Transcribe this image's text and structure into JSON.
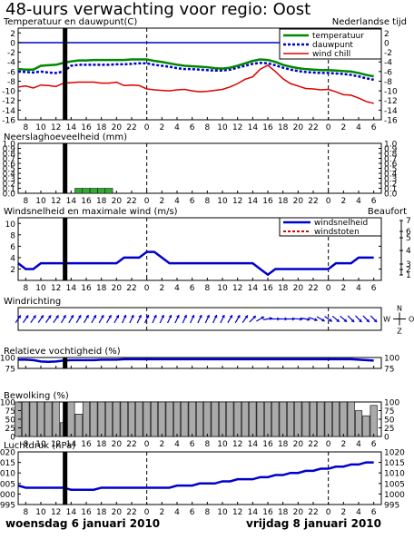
{
  "title": "48-uurs verwachting voor regio: Oost",
  "time_zone": "Nederlandse tijd",
  "date_left": "woensdag 6 januari 2010",
  "date_right": "vrijdag 8 januari 2010",
  "x_tick_labels": [
    "8",
    "10",
    "12",
    "14",
    "16",
    "18",
    "20",
    "22",
    "0",
    "2",
    "4",
    "6",
    "8",
    "10",
    "12",
    "14",
    "16",
    "18",
    "20",
    "22",
    "0",
    "2",
    "4",
    "6"
  ],
  "colors": {
    "temperature": "#008800",
    "dewpoint": "#0000cc",
    "windchill": "#dd0000",
    "precip": "#33aa33",
    "wind": "#0000cc",
    "gust": "#dd0000",
    "direction": "#0000cc",
    "humidity": "#0000cc",
    "cloud": "#aaaaaa",
    "pressure": "#0000cc",
    "now_line": "#000000"
  },
  "chart_data": [
    {
      "type": "line",
      "title": "Temperatuur en dauwpunt(C)",
      "ylim": [
        -16,
        3
      ],
      "y_ticks": [
        2,
        0,
        -2,
        -4,
        -6,
        -8,
        -10,
        -12,
        -14,
        -16
      ],
      "series": [
        {
          "name": "temperatuur",
          "x": [
            7,
            8,
            9,
            10,
            11,
            12,
            13,
            14,
            15,
            16,
            17,
            18,
            19,
            20,
            21,
            22,
            23,
            24,
            25,
            26,
            27,
            28,
            29,
            30,
            31,
            32,
            33,
            34,
            35,
            36,
            37,
            38,
            39,
            40,
            41,
            42,
            43,
            44,
            45,
            46,
            47,
            48,
            49,
            50,
            51,
            52,
            53,
            54
          ],
          "values": [
            -5.5,
            -5.6,
            -5.6,
            -4.8,
            -4.7,
            -4.6,
            -4.2,
            -3.9,
            -3.7,
            -3.7,
            -3.6,
            -3.6,
            -3.6,
            -3.6,
            -3.6,
            -3.5,
            -3.5,
            -3.5,
            -3.8,
            -4.0,
            -4.3,
            -4.6,
            -4.8,
            -4.9,
            -5.0,
            -5.1,
            -5.3,
            -5.4,
            -5.2,
            -4.8,
            -4.3,
            -3.8,
            -3.5,
            -3.6,
            -4.0,
            -4.6,
            -5.0,
            -5.3,
            -5.5,
            -5.6,
            -5.7,
            -5.7,
            -5.8,
            -5.9,
            -6.0,
            -6.3,
            -6.7,
            -7.0
          ]
        },
        {
          "name": "dauwpunt",
          "x": [
            7,
            8,
            9,
            10,
            11,
            12,
            13,
            14,
            15,
            16,
            17,
            18,
            19,
            20,
            21,
            22,
            23,
            24,
            25,
            26,
            27,
            28,
            29,
            30,
            31,
            32,
            33,
            34,
            35,
            36,
            37,
            38,
            39,
            40,
            41,
            42,
            43,
            44,
            45,
            46,
            47,
            48,
            49,
            50,
            51,
            52,
            53,
            54
          ],
          "values": [
            -6.0,
            -6.1,
            -6.2,
            -6.0,
            -6.2,
            -6.3,
            -6.0,
            -4.8,
            -4.6,
            -4.6,
            -4.6,
            -4.6,
            -4.6,
            -4.5,
            -4.5,
            -4.4,
            -4.3,
            -4.3,
            -4.6,
            -4.8,
            -5.0,
            -5.3,
            -5.5,
            -5.5,
            -5.6,
            -5.7,
            -5.8,
            -5.8,
            -5.6,
            -5.2,
            -4.8,
            -4.4,
            -4.2,
            -4.3,
            -4.7,
            -5.2,
            -5.6,
            -5.9,
            -6.1,
            -6.2,
            -6.3,
            -6.3,
            -6.4,
            -6.5,
            -6.7,
            -7.0,
            -7.4,
            -7.7
          ]
        },
        {
          "name": "wind chill",
          "x": [
            7,
            8,
            9,
            10,
            11,
            12,
            13,
            14,
            15,
            16,
            17,
            18,
            19,
            20,
            21,
            22,
            23,
            24,
            25,
            26,
            27,
            28,
            29,
            30,
            31,
            32,
            33,
            34,
            35,
            36,
            37,
            38,
            39,
            40,
            41,
            42,
            43,
            44,
            45,
            46,
            47,
            48,
            49,
            50,
            51,
            52,
            53,
            54
          ],
          "values": [
            -9.2,
            -9.0,
            -9.4,
            -8.8,
            -8.9,
            -9.1,
            -8.4,
            -8.3,
            -8.2,
            -8.2,
            -8.2,
            -8.4,
            -8.4,
            -8.2,
            -8.9,
            -8.8,
            -8.9,
            -9.6,
            -9.8,
            -9.9,
            -10.0,
            -9.8,
            -9.7,
            -10.0,
            -10.2,
            -10.1,
            -9.9,
            -9.7,
            -9.2,
            -8.5,
            -7.6,
            -7.1,
            -5.5,
            -4.7,
            -6.0,
            -7.5,
            -8.5,
            -9.0,
            -9.5,
            -9.6,
            -9.8,
            -9.7,
            -10.2,
            -10.8,
            -10.9,
            -11.5,
            -12.2,
            -12.6
          ]
        }
      ]
    },
    {
      "type": "bar",
      "title": "Neerslaghoeveelheid (mm)",
      "ylim": [
        0,
        1
      ],
      "y_ticks": [
        1.0,
        0.9,
        0.8,
        0.7,
        0.6,
        0.5,
        0.4,
        0.3,
        0.2,
        0.1,
        0.0
      ],
      "x": [
        15,
        16,
        17,
        18,
        19
      ],
      "values": [
        0.1,
        0.1,
        0.1,
        0.1,
        0.1
      ]
    },
    {
      "type": "line",
      "title": "Windsnelheid en maximale wind (m/s)",
      "right_axis_title": "Beaufort",
      "ylim": [
        0,
        11
      ],
      "y_ticks": [
        10,
        8,
        6,
        4,
        2
      ],
      "right_ticks": [
        {
          "value": 7,
          "label": "7"
        },
        {
          "value": 6,
          "label": "6"
        },
        {
          "value": 5,
          "label": "5"
        },
        {
          "value": 4,
          "label": "4"
        },
        {
          "value": 3,
          "label": "3"
        },
        {
          "value": 2,
          "label": "2"
        },
        {
          "value": 1,
          "label": "1"
        }
      ],
      "series": [
        {
          "name": "windsnelheid",
          "x": [
            7,
            8,
            9,
            10,
            11,
            12,
            13,
            14,
            15,
            16,
            17,
            18,
            19,
            20,
            21,
            22,
            23,
            24,
            25,
            26,
            27,
            28,
            29,
            30,
            31,
            32,
            33,
            34,
            35,
            36,
            37,
            38,
            39,
            40,
            41,
            42,
            43,
            44,
            45,
            46,
            47,
            48,
            49,
            50,
            51,
            52,
            53,
            54
          ],
          "values": [
            3,
            2,
            2,
            3,
            3,
            3,
            3,
            3,
            3,
            3,
            3,
            3,
            3,
            3,
            4,
            4,
            4,
            5,
            5,
            4,
            3,
            3,
            3,
            3,
            3,
            3,
            3,
            3,
            3,
            3,
            3,
            3,
            2,
            1,
            2,
            2,
            2,
            2,
            2,
            2,
            2,
            2,
            3,
            3,
            3,
            4,
            4,
            4
          ]
        },
        {
          "name": "windstoten",
          "x": [],
          "values": []
        }
      ]
    },
    {
      "type": "vector",
      "title": "Windrichting",
      "compass": [
        "N",
        "W",
        "O",
        "Z"
      ],
      "x": [
        7,
        8,
        9,
        10,
        11,
        12,
        13,
        14,
        15,
        16,
        17,
        18,
        19,
        20,
        21,
        22,
        23,
        24,
        25,
        26,
        27,
        28,
        29,
        30,
        31,
        32,
        33,
        34,
        35,
        36,
        37,
        38,
        39,
        40,
        41,
        42,
        43,
        44,
        45,
        46,
        47,
        48,
        49,
        50,
        51,
        52,
        53,
        54
      ],
      "direction_deg": [
        215,
        215,
        215,
        215,
        215,
        215,
        210,
        210,
        210,
        210,
        210,
        210,
        210,
        210,
        205,
        205,
        205,
        205,
        205,
        205,
        205,
        205,
        205,
        205,
        205,
        205,
        205,
        205,
        210,
        210,
        215,
        225,
        240,
        260,
        270,
        270,
        270,
        275,
        280,
        290,
        300,
        305,
        310,
        310,
        315,
        315,
        315,
        315
      ]
    },
    {
      "type": "line",
      "title": "Relatieve vochtigheid (%)",
      "ylim": [
        75,
        100
      ],
      "y_ticks": [
        100,
        75
      ],
      "series": [
        {
          "name": "",
          "x": [
            7,
            8,
            9,
            10,
            11,
            12,
            13,
            14,
            15,
            16,
            17,
            18,
            19,
            20,
            21,
            22,
            23,
            24,
            25,
            26,
            27,
            28,
            29,
            30,
            31,
            32,
            33,
            34,
            35,
            36,
            37,
            38,
            39,
            40,
            41,
            42,
            43,
            44,
            45,
            46,
            47,
            48,
            49,
            50,
            51,
            52,
            53,
            54
          ],
          "values": [
            95,
            95,
            94,
            91,
            90,
            91,
            93,
            94,
            94,
            94,
            94,
            95,
            95,
            95,
            96,
            96,
            96,
            96,
            96,
            96,
            96,
            96,
            96,
            96,
            96,
            96,
            96,
            96,
            96,
            96,
            96,
            96,
            96,
            96,
            96,
            96,
            96,
            96,
            96,
            96,
            96,
            96,
            96,
            96,
            96,
            95,
            94,
            93
          ]
        }
      ]
    },
    {
      "type": "bar",
      "title": "Bewolking (%)",
      "ylim": [
        0,
        100
      ],
      "y_ticks": [
        100,
        75,
        50,
        25,
        0
      ],
      "x": [
        7,
        8,
        9,
        10,
        11,
        12,
        13,
        14,
        15,
        16,
        17,
        18,
        19,
        20,
        21,
        22,
        23,
        24,
        25,
        26,
        27,
        28,
        29,
        30,
        31,
        32,
        33,
        34,
        35,
        36,
        37,
        38,
        39,
        40,
        41,
        42,
        43,
        44,
        45,
        46,
        47,
        48,
        49,
        50,
        51,
        52,
        53,
        54
      ],
      "values": [
        100,
        100,
        100,
        100,
        100,
        100,
        40,
        100,
        65,
        100,
        100,
        100,
        100,
        100,
        100,
        100,
        100,
        100,
        100,
        100,
        100,
        100,
        100,
        100,
        100,
        100,
        100,
        100,
        100,
        100,
        100,
        100,
        100,
        100,
        100,
        100,
        100,
        100,
        100,
        100,
        100,
        100,
        100,
        100,
        100,
        75,
        60,
        90
      ]
    },
    {
      "type": "line",
      "title": "Luchtdruk (hPa)",
      "ylim": [
        995,
        1020
      ],
      "y_ticks": [
        1020,
        1015,
        1010,
        1005,
        1000,
        995
      ],
      "series": [
        {
          "name": "",
          "x": [
            7,
            8,
            9,
            10,
            11,
            12,
            13,
            14,
            15,
            16,
            17,
            18,
            19,
            20,
            21,
            22,
            23,
            24,
            25,
            26,
            27,
            28,
            29,
            30,
            31,
            32,
            33,
            34,
            35,
            36,
            37,
            38,
            39,
            40,
            41,
            42,
            43,
            44,
            45,
            46,
            47,
            48,
            49,
            50,
            51,
            52,
            53,
            54
          ],
          "values": [
            1004,
            1003,
            1003,
            1003,
            1003,
            1003,
            1003,
            1002,
            1002,
            1002,
            1002,
            1003,
            1003,
            1003,
            1003,
            1003,
            1003,
            1003,
            1003,
            1003,
            1003,
            1004,
            1004,
            1004,
            1005,
            1005,
            1005,
            1006,
            1006,
            1007,
            1007,
            1007,
            1008,
            1008,
            1009,
            1009,
            1010,
            1010,
            1011,
            1011,
            1012,
            1012,
            1013,
            1013,
            1014,
            1014,
            1015,
            1015
          ]
        }
      ]
    }
  ]
}
